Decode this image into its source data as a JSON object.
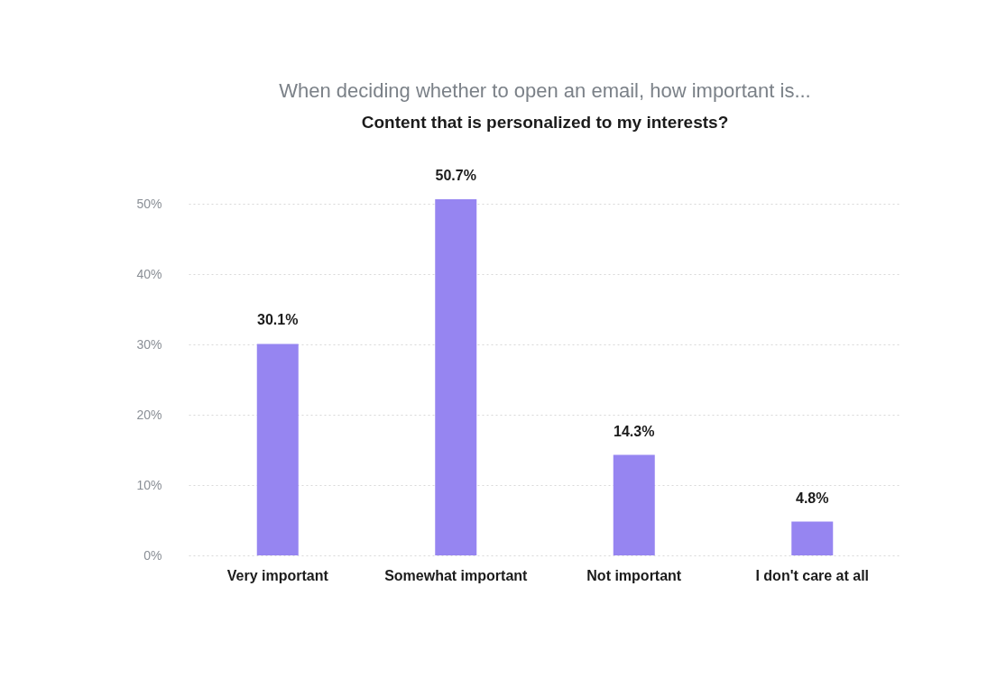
{
  "chart_data": {
    "type": "bar",
    "title": "When deciding whether to open an email, how important is...",
    "subtitle": "Content that is personalized to my interests?",
    "categories": [
      "Very important",
      "Somewhat important",
      "Not important",
      "I don't care at all"
    ],
    "values": [
      30.1,
      50.7,
      14.3,
      4.8
    ],
    "value_labels": [
      "30.1%",
      "50.7%",
      "14.3%",
      "4.8%"
    ],
    "color": "#9685f1",
    "ylim": [
      0,
      50.7
    ],
    "yticks": [
      {
        "value": 0,
        "label": "0%"
      },
      {
        "value": 10,
        "label": "10%"
      },
      {
        "value": 20,
        "label": "20%"
      },
      {
        "value": 30,
        "label": "30%"
      },
      {
        "value": 40,
        "label": "40%"
      },
      {
        "value": 50,
        "label": "50%"
      }
    ],
    "grid": "y"
  }
}
